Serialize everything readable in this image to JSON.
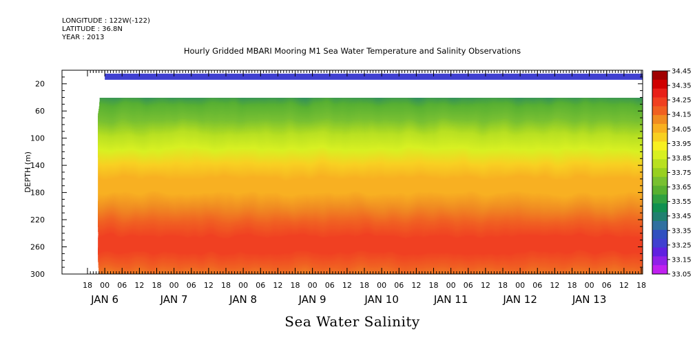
{
  "header": {
    "longitude": "LONGITUDE : 122W(-122)",
    "latitude": "LATITUDE : 36.8N",
    "year": "YEAR : 2013",
    "title": "Hourly Gridded MBARI Mooring M1 Sea Water Temperature and Salinity Observations"
  },
  "bottom_title": "Sea Water Salinity",
  "chart_data": {
    "type": "heatmap",
    "title": "Hourly Gridded MBARI Mooring M1 Sea Water Temperature and Salinity Observations",
    "variable": "Sea Water Salinity",
    "ylabel": "DEPTH (m)",
    "ylim": [
      300,
      0
    ],
    "yticks": [
      20,
      60,
      100,
      140,
      180,
      220,
      260,
      300
    ],
    "x_axis": {
      "hour_ticks": [
        "18",
        "00",
        "06",
        "12",
        "18",
        "00",
        "06",
        "12",
        "18",
        "00",
        "06",
        "12",
        "18",
        "00",
        "06",
        "12",
        "18",
        "00",
        "06",
        "12",
        "18",
        "00",
        "06",
        "12",
        "18",
        "00",
        "06",
        "12",
        "18",
        "00",
        "06",
        "12",
        "18"
      ],
      "day_labels": [
        "JAN  6",
        "JAN  7",
        "JAN  8",
        "JAN  9",
        "JAN 10",
        "JAN 11",
        "JAN 12",
        "JAN 13"
      ],
      "xlim": [
        "JAN 5 18:00",
        "JAN 13 18:00"
      ]
    },
    "data_start": "JAN 6 00:00",
    "data_end": "JAN 13 18:00",
    "depth_gaps": [
      "below 10 m to 40 m (no data)"
    ],
    "surface_layer_value": 33.25,
    "depth_profile": [
      {
        "depth": 10,
        "salinity": 33.25
      },
      {
        "depth": 40,
        "salinity": 33.45
      },
      {
        "depth": 60,
        "salinity": 33.6
      },
      {
        "depth": 80,
        "salinity": 33.7
      },
      {
        "depth": 100,
        "salinity": 33.8
      },
      {
        "depth": 120,
        "salinity": 33.9
      },
      {
        "depth": 140,
        "salinity": 34.0
      },
      {
        "depth": 160,
        "salinity": 34.05
      },
      {
        "depth": 180,
        "salinity": 34.08
      },
      {
        "depth": 200,
        "salinity": 34.12
      },
      {
        "depth": 220,
        "salinity": 34.2
      },
      {
        "depth": 240,
        "salinity": 34.25
      },
      {
        "depth": 260,
        "salinity": 34.28
      },
      {
        "depth": 280,
        "salinity": 34.2
      },
      {
        "depth": 300,
        "salinity": 34.15
      }
    ],
    "colorbar": {
      "levels": [
        "34.45",
        "34.35",
        "34.25",
        "34.15",
        "34.05",
        "33.95",
        "33.85",
        "33.75",
        "33.65",
        "33.55",
        "33.45",
        "33.35",
        "33.25",
        "33.15",
        "33.05"
      ],
      "colors": [
        "#a00000",
        "#d00000",
        "#e82018",
        "#f04020",
        "#f06020",
        "#f08c20",
        "#f8b020",
        "#f8d020",
        "#f8f020",
        "#d8f020",
        "#b8e020",
        "#98d020",
        "#78c030",
        "#58b030",
        "#30a040",
        "#109050",
        "#208070",
        "#3070a0",
        "#3050c0",
        "#4040d0",
        "#6020e0",
        "#9020e8",
        "#c020f0"
      ]
    },
    "grid": false,
    "legend": "colorbar right"
  }
}
